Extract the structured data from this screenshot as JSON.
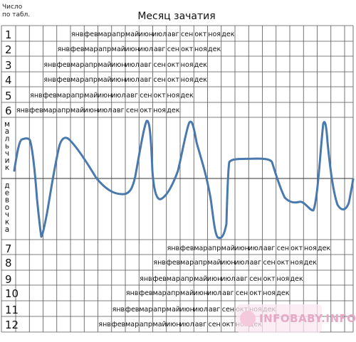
{
  "header": {
    "corner_label_line1": "Число",
    "corner_label_line2": "по табл.",
    "title": "Месяц зачатия"
  },
  "months": [
    "янв",
    "фев",
    "мар",
    "апр",
    "май",
    "июн",
    "июл",
    "авг",
    "сен",
    "окт",
    "ноя",
    "дек"
  ],
  "rows_top": [
    {
      "label": "1",
      "start_col": 4
    },
    {
      "label": "2",
      "start_col": 3
    },
    {
      "label": "3",
      "start_col": 2
    },
    {
      "label": "4",
      "start_col": 2
    },
    {
      "label": "5",
      "start_col": 1
    },
    {
      "label": "6",
      "start_col": 0
    }
  ],
  "rows_bottom": [
    {
      "label": "7",
      "start_col": 11
    },
    {
      "label": "8",
      "start_col": 10
    },
    {
      "label": "9",
      "start_col": 9
    },
    {
      "label": "10",
      "start_col": 8
    },
    {
      "label": "11",
      "start_col": 7
    },
    {
      "label": "12",
      "start_col": 6
    }
  ],
  "side_labels": {
    "upper": "мальчик",
    "lower": "девочка"
  },
  "curve_color": "#4a79ae",
  "watermark": "INFOBABY.INFO"
}
